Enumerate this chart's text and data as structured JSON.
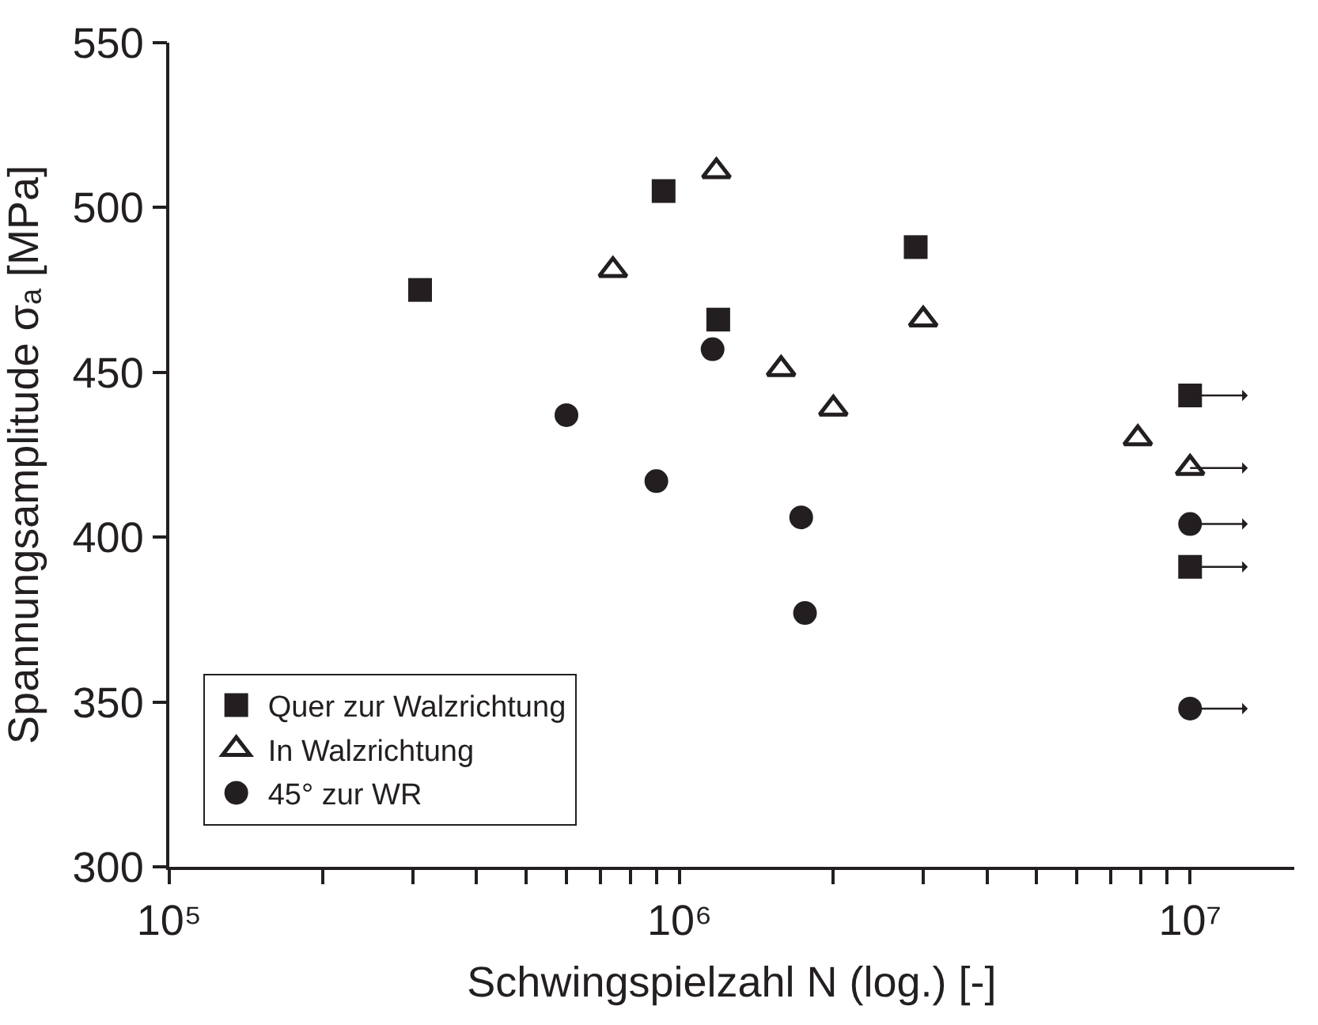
{
  "chart_data": {
    "type": "scatter",
    "xlabel": "Schwingspielzahl N (log.) [-]",
    "ylabel": "Spannungsamplitude σₐ [MPa]",
    "log": "x",
    "xlim": [
      100000,
      16000000
    ],
    "ylim": [
      300,
      550
    ],
    "xticks": [
      {
        "value": 100000,
        "label": "10⁵"
      },
      {
        "value": 200000,
        "label": null
      },
      {
        "value": 300000,
        "label": null
      },
      {
        "value": 400000,
        "label": null
      },
      {
        "value": 500000,
        "label": null
      },
      {
        "value": 600000,
        "label": null
      },
      {
        "value": 700000,
        "label": null
      },
      {
        "value": 800000,
        "label": null
      },
      {
        "value": 900000,
        "label": null
      },
      {
        "value": 1000000,
        "label": "10⁶"
      },
      {
        "value": 2000000,
        "label": null
      },
      {
        "value": 3000000,
        "label": null
      },
      {
        "value": 4000000,
        "label": null
      },
      {
        "value": 5000000,
        "label": null
      },
      {
        "value": 6000000,
        "label": null
      },
      {
        "value": 7000000,
        "label": null
      },
      {
        "value": 8000000,
        "label": null
      },
      {
        "value": 9000000,
        "label": null
      },
      {
        "value": 10000000,
        "label": "10⁷"
      }
    ],
    "yticks": [
      300,
      350,
      400,
      450,
      500,
      550
    ],
    "legend": "bottom left",
    "series": [
      {
        "name": "Quer zur Walzrichtung",
        "color": "#231f20",
        "marker": "square",
        "x": [
          310000,
          930000,
          1190000,
          2900000,
          10000000,
          10000000
        ],
        "values": [
          475,
          505,
          466,
          488,
          443,
          391
        ]
      },
      {
        "name": "In Walzrichtung",
        "color": "#231f20",
        "marker": "triangle-open",
        "x": [
          1180000,
          740000,
          1580000,
          2000000,
          3000000,
          7900000,
          10000000
        ],
        "values": [
          511,
          481,
          451,
          439,
          466,
          430,
          421
        ]
      },
      {
        "name": "45° zur WR",
        "color": "#231f20",
        "marker": "circle",
        "x": [
          1160000,
          600000,
          900000,
          1730000,
          1760000,
          10000000,
          10000000
        ],
        "values": [
          457,
          437,
          417,
          406,
          377,
          404,
          348
        ]
      }
    ]
  }
}
